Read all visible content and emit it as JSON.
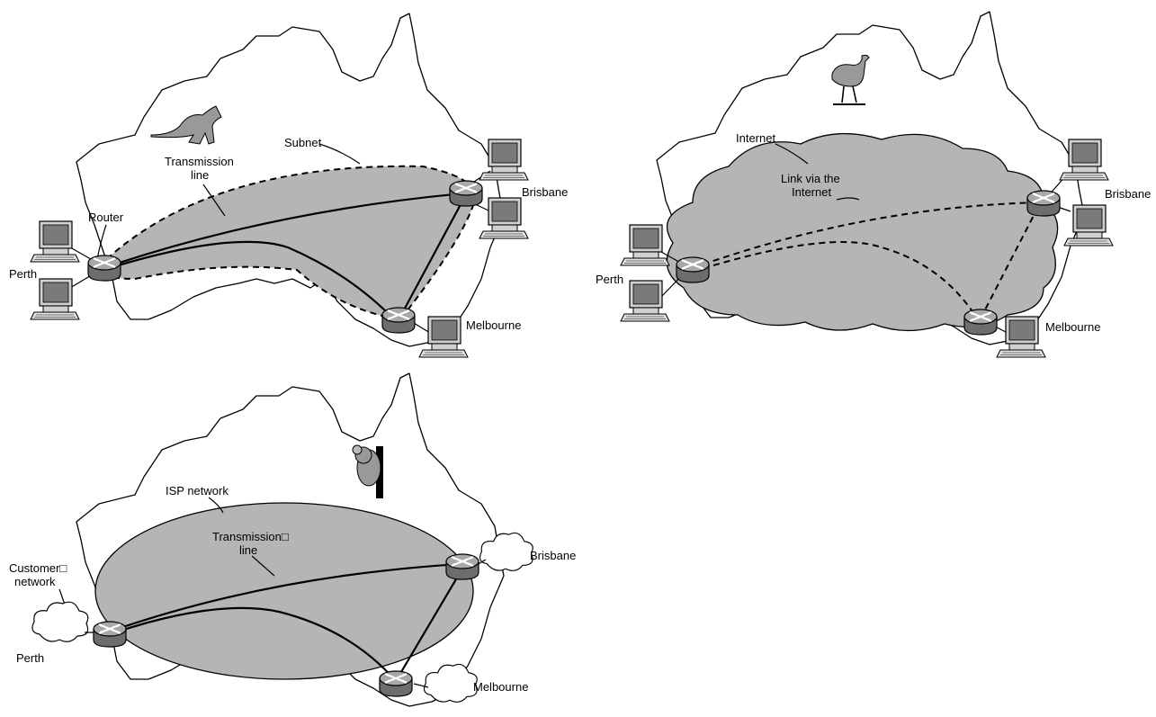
{
  "panel1": {
    "subnet": "Subnet",
    "transmission_line_1": "Transmission",
    "transmission_line_2": "line",
    "router": "Router",
    "perth": "Perth",
    "brisbane": "Brisbane",
    "melbourne": "Melbourne"
  },
  "panel2": {
    "internet": "Internet",
    "link_1": "Link via the",
    "link_2": "Internet",
    "perth": "Perth",
    "brisbane": "Brisbane",
    "melbourne": "Melbourne"
  },
  "panel3": {
    "isp_network": "ISP network",
    "transmission_line_1": "Transmission□",
    "transmission_line_2": "line",
    "customer_network_1": "Customer□",
    "customer_network_2": "network",
    "perth": "Perth",
    "brisbane": "Brisbane",
    "melbourne": "Melbourne"
  }
}
